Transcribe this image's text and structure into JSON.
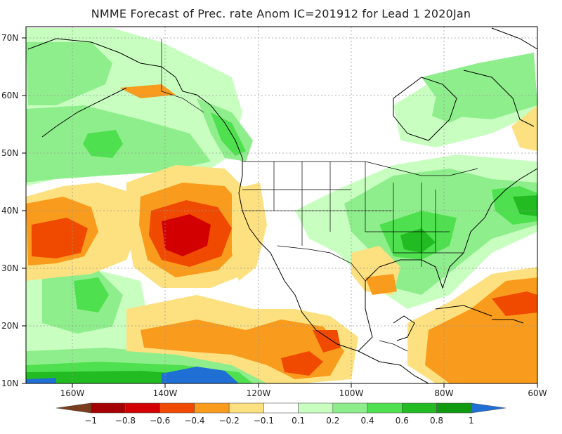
{
  "title": "NMME Forecast of Prec. rate Anom IC=201912 for Lead 1 2020Jan",
  "map": {
    "lon_range": [
      -170,
      -60
    ],
    "lat_range": [
      10,
      72
    ],
    "y_ticks": [
      "10N",
      "20N",
      "30N",
      "40N",
      "50N",
      "60N",
      "70N"
    ],
    "x_ticks": [
      "160W",
      "140W",
      "120W",
      "100W",
      "80W",
      "60W"
    ],
    "grid": true
  },
  "colorbar": {
    "labels": [
      "−1",
      "−0.8",
      "−0.6",
      "−0.4",
      "−0.2",
      "−0.1",
      "0.1",
      "0.2",
      "0.4",
      "0.6",
      "0.8",
      "1"
    ],
    "colors": [
      "#7a3c1c",
      "#a40000",
      "#d20000",
      "#f04a00",
      "#f99b1d",
      "#fde07f",
      "#ffffff",
      "#c8ffc0",
      "#8fee8c",
      "#4fe04f",
      "#22bb22",
      "#109a10",
      "#1f6fd4"
    ]
  },
  "features": {
    "green": "#8fe48c",
    "green_light": "#c8ffc0",
    "green_mid": "#4fe04f",
    "green_dark": "#22bb22",
    "yellow": "#fde07f",
    "orange": "#f99b1d",
    "red_orange": "#f04a00",
    "red": "#d20000",
    "blue": "#1f6fd4"
  }
}
